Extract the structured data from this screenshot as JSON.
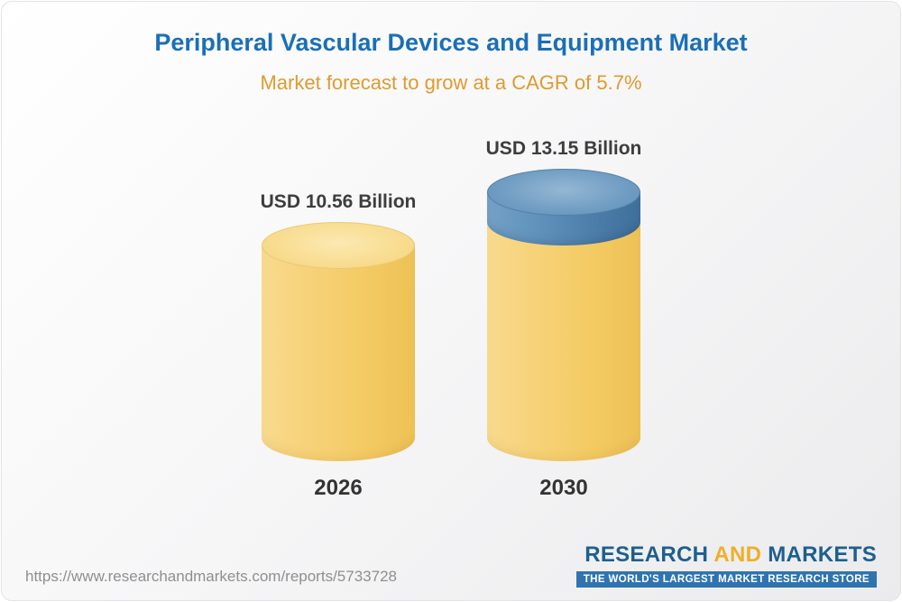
{
  "title": "Peripheral Vascular Devices and Equipment Market",
  "subtitle": "Market forecast to grow at a CAGR of 5.7%",
  "chart_data": {
    "type": "bar",
    "bar_style": "cylinder",
    "categories": [
      "2026",
      "2030"
    ],
    "values": [
      10.56,
      13.15
    ],
    "value_labels": [
      "USD 10.56 Billion",
      "USD 13.15 Billion"
    ],
    "unit": "USD Billion",
    "title": "Peripheral Vascular Devices and Equipment Market",
    "subtitle": "Market forecast to grow at a CAGR of 5.7%",
    "cagr": "5.7%",
    "legend": "none",
    "axes": "none",
    "notes": "Second cylinder shows the growth increment over 2026 as a blue segment on top of the yellow base"
  },
  "colors": {
    "title_blue": "#1b6fb5",
    "subtitle_orange": "#df9a2e",
    "bar_yellow": "#f6d47b",
    "growth_blue": "#5d8fba",
    "label_dark": "#3d3d3d",
    "url_gray": "#8f8f8f",
    "logo_blue": "#1e5f8e",
    "logo_gold": "#eeaf2a",
    "tagline_bg": "#2f74ae"
  },
  "footer": {
    "url": "https://www.researchandmarkets.com/reports/5733728",
    "logo": {
      "research": "RESEARCH",
      "and": "AND",
      "markets": "MARKETS",
      "tagline": "THE WORLD'S LARGEST MARKET RESEARCH STORE"
    }
  }
}
